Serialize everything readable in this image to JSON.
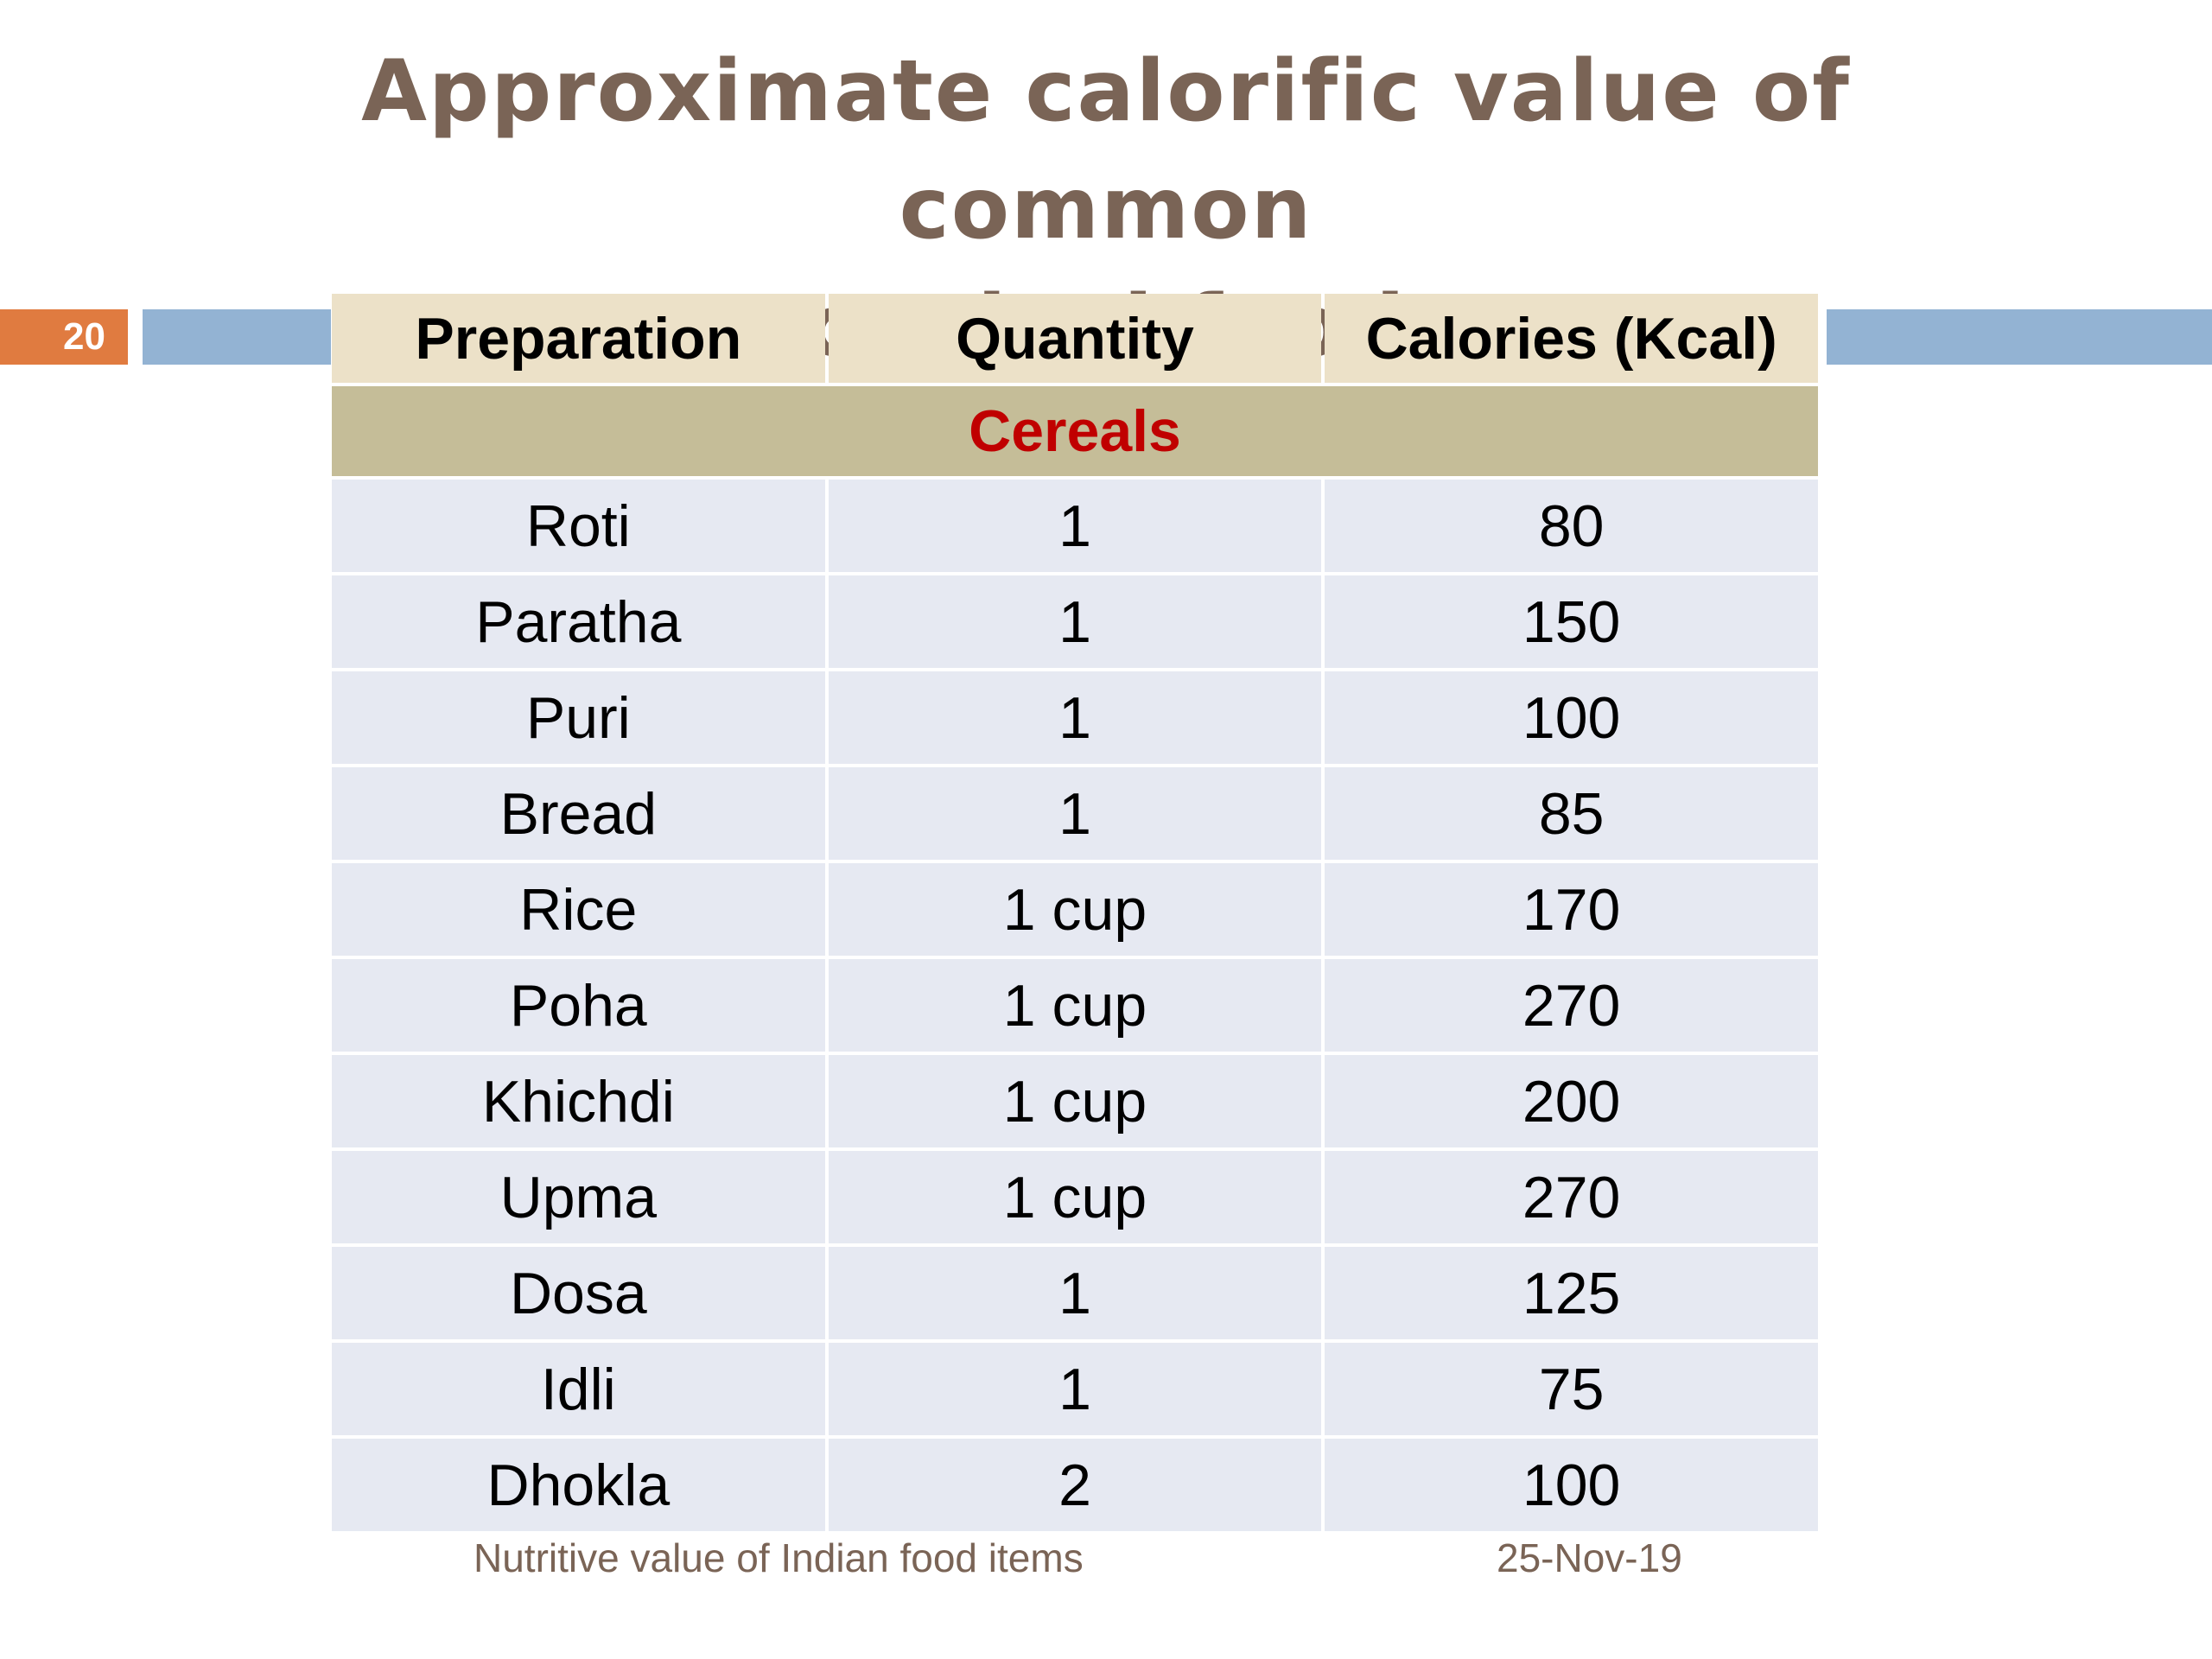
{
  "slide": {
    "title_line1": "Approximate calorific value of  common",
    "title_line2": "cooked food",
    "number": "20"
  },
  "table": {
    "headers": [
      "Preparation",
      "Quantity",
      "Calories (Kcal)"
    ],
    "category": "Cereals",
    "rows": [
      [
        "Roti",
        "1",
        "80"
      ],
      [
        "Paratha",
        "1",
        "150"
      ],
      [
        "Puri",
        "1",
        "100"
      ],
      [
        "Bread",
        "1",
        "85"
      ],
      [
        "Rice",
        "1 cup",
        "170"
      ],
      [
        "Poha",
        "1 cup",
        "270"
      ],
      [
        "Khichdi",
        "1 cup",
        "200"
      ],
      [
        "Upma",
        "1 cup",
        "270"
      ],
      [
        "Dosa",
        "1",
        "125"
      ],
      [
        "Idli",
        "1",
        "75"
      ],
      [
        "Dhokla",
        "2",
        "100"
      ]
    ]
  },
  "footer": {
    "left": "Nutritive value of Indian food items",
    "right": "25-Nov-19"
  },
  "colors": {
    "title": "#7a6456",
    "slide_number_bg": "#e07b40",
    "accent_bar": "#93b3d3",
    "header_bg": "#ece1c8",
    "category_bg": "#c5bd98",
    "category_text": "#c00000",
    "row_bg": "#e6e9f2"
  }
}
